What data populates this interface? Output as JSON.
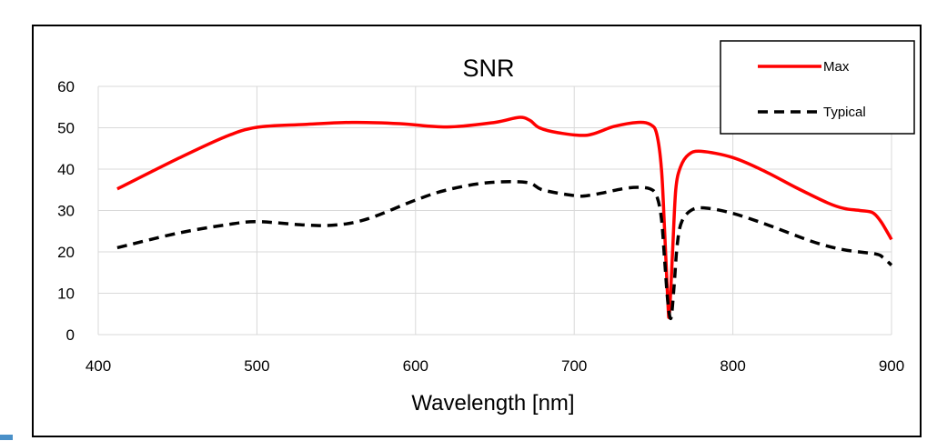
{
  "chart_data": {
    "type": "line",
    "title": "SNR",
    "xlabel": "Wavelength [nm]",
    "ylabel": "",
    "xlim": [
      400,
      900
    ],
    "ylim": [
      0,
      60
    ],
    "xticks": [
      400,
      500,
      600,
      700,
      800,
      900
    ],
    "yticks": [
      0,
      10,
      20,
      30,
      40,
      50,
      60
    ],
    "grid": true,
    "legend_position": "top-right",
    "series": [
      {
        "name": "Max",
        "color": "#ff0000",
        "dash": "solid",
        "points": [
          [
            412,
            35.2
          ],
          [
            450,
            42.5
          ],
          [
            480,
            47.8
          ],
          [
            500,
            50.1
          ],
          [
            530,
            50.8
          ],
          [
            560,
            51.3
          ],
          [
            590,
            51
          ],
          [
            620,
            50.2
          ],
          [
            650,
            51.3
          ],
          [
            665,
            52.5
          ],
          [
            672,
            51.8
          ],
          [
            678,
            50
          ],
          [
            690,
            48.8
          ],
          [
            708,
            48.2
          ],
          [
            725,
            50.3
          ],
          [
            740,
            51.3
          ],
          [
            748,
            50.8
          ],
          [
            752,
            48.5
          ],
          [
            755,
            40
          ],
          [
            757,
            25
          ],
          [
            759,
            8
          ],
          [
            760,
            5
          ],
          [
            762,
            20
          ],
          [
            764,
            35
          ],
          [
            767,
            40.5
          ],
          [
            772,
            43.5
          ],
          [
            780,
            44.3
          ],
          [
            800,
            42.8
          ],
          [
            820,
            39.5
          ],
          [
            840,
            35.5
          ],
          [
            860,
            31.8
          ],
          [
            870,
            30.5
          ],
          [
            880,
            30
          ],
          [
            888,
            29.5
          ],
          [
            893,
            27.5
          ],
          [
            897,
            25
          ],
          [
            900,
            23
          ]
        ]
      },
      {
        "name": "Typical",
        "color": "#000000",
        "dash": "dashed",
        "points": [
          [
            412,
            21
          ],
          [
            450,
            24.5
          ],
          [
            480,
            26.5
          ],
          [
            500,
            27.3
          ],
          [
            530,
            26.5
          ],
          [
            550,
            26.5
          ],
          [
            570,
            28
          ],
          [
            600,
            32.5
          ],
          [
            620,
            35
          ],
          [
            645,
            36.7
          ],
          [
            670,
            36.8
          ],
          [
            680,
            35
          ],
          [
            700,
            33.6
          ],
          [
            710,
            33.7
          ],
          [
            730,
            35.2
          ],
          [
            740,
            35.6
          ],
          [
            748,
            35.2
          ],
          [
            752,
            33.5
          ],
          [
            755,
            28
          ],
          [
            757,
            18
          ],
          [
            759,
            8
          ],
          [
            761,
            4
          ],
          [
            763,
            12
          ],
          [
            765,
            22
          ],
          [
            768,
            27.5
          ],
          [
            775,
            30.3
          ],
          [
            785,
            30.5
          ],
          [
            800,
            29.3
          ],
          [
            820,
            26.8
          ],
          [
            850,
            22.5
          ],
          [
            870,
            20.5
          ],
          [
            890,
            19.5
          ],
          [
            895,
            18.5
          ],
          [
            900,
            16.8
          ]
        ]
      }
    ]
  }
}
